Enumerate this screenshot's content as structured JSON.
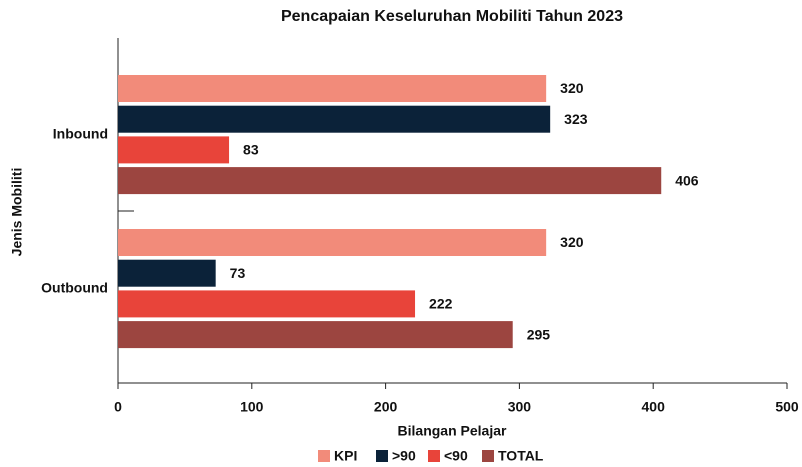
{
  "chart_data": {
    "type": "hbar",
    "title": "Pencapaian Keseluruhan Mobiliti Tahun 2023",
    "xlabel": "Bilangan Pelajar",
    "ylabel": "Jenis Mobiliti",
    "categories": [
      "Inbound",
      "Outbound"
    ],
    "series": [
      {
        "name": "KPI",
        "color": "#f28b7a",
        "values": [
          320,
          320
        ]
      },
      {
        "name": ">90",
        "color": "#0b2239",
        "values": [
          323,
          73
        ]
      },
      {
        "name": "<90",
        "color": "#e8443a",
        "values": [
          83,
          222
        ]
      },
      {
        "name": "TOTAL",
        "color": "#9c4540",
        "values": [
          406,
          295
        ]
      }
    ],
    "xlim": [
      0,
      500
    ],
    "xticks": [
      0,
      100,
      200,
      300,
      400,
      500
    ],
    "grid": false,
    "legend": "bottom"
  }
}
